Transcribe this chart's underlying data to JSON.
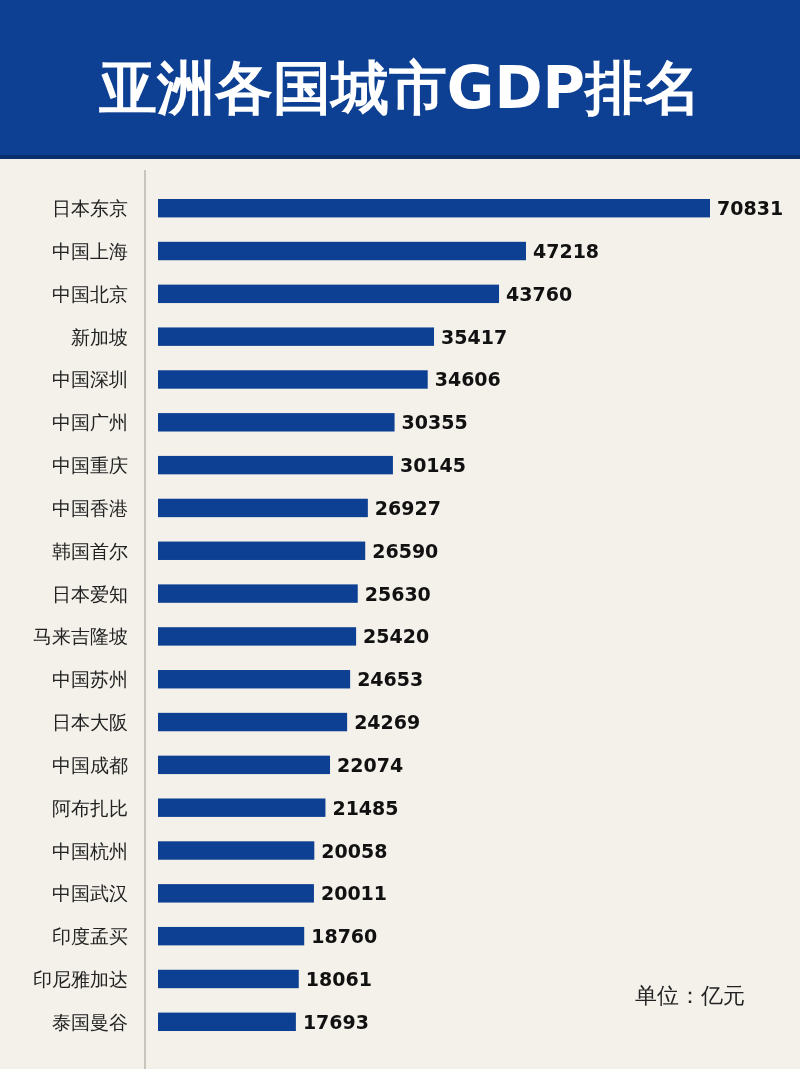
{
  "chart_data": {
    "type": "bar",
    "orientation": "horizontal",
    "title": "亚洲各国城市GDP排名",
    "categories": [
      "日本东京",
      "中国上海",
      "中国北京",
      "新加坡",
      "中国深圳",
      "中国广州",
      "中国重庆",
      "中国香港",
      "韩国首尔",
      "日本爱知",
      "马来吉隆坡",
      "中国苏州",
      "日本大阪",
      "中国成都",
      "阿布扎比",
      "中国杭州",
      "中国武汉",
      "印度孟买",
      "印尼雅加达",
      "泰国曼谷"
    ],
    "values": [
      70831,
      47218,
      43760,
      35417,
      34606,
      30355,
      30145,
      26927,
      26590,
      25630,
      25420,
      24653,
      24269,
      22074,
      21485,
      20058,
      20011,
      18760,
      18061,
      17693
    ],
    "color": "#0d3f92",
    "data_labels": true,
    "annotations": [
      "单位：亿元"
    ]
  }
}
